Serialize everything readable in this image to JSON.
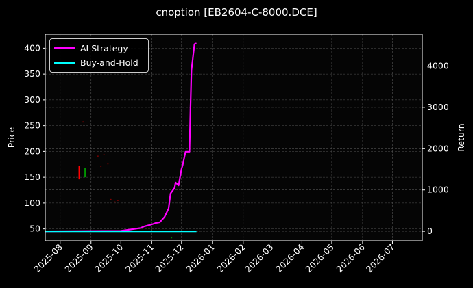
{
  "chart_data": {
    "type": "line",
    "title": "cnoption [EB2604-C-8000.DCE]",
    "ylabel_left": "Price",
    "ylabel_right": "Return",
    "left_ticks": [
      50,
      100,
      150,
      200,
      250,
      300,
      350,
      400
    ],
    "right_ticks": [
      0,
      1000,
      2000,
      3000,
      4000
    ],
    "x_ticks": [
      "2025-08",
      "2025-09",
      "2025-10",
      "2025-11",
      "2025-12",
      "2026-01",
      "2026-02",
      "2026-03",
      "2026-04",
      "2026-05",
      "2026-06",
      "2026-07"
    ],
    "xlim": [
      "2025-07-17",
      "2026-07-31"
    ],
    "ylim_left": [
      27,
      427
    ],
    "ylim_right": [
      -230,
      4770
    ],
    "grid": true,
    "legend_position": "top-left",
    "series": [
      {
        "name": "AI Strategy",
        "axis": "right",
        "color": "#ff00ff",
        "points": [
          [
            "2025-07-17",
            0
          ],
          [
            "2025-10-01",
            10
          ],
          [
            "2025-10-21",
            80
          ],
          [
            "2025-10-24",
            115
          ],
          [
            "2025-11-01",
            165
          ],
          [
            "2025-11-05",
            200
          ],
          [
            "2025-11-09",
            215
          ],
          [
            "2025-11-14",
            350
          ],
          [
            "2025-11-18",
            550
          ],
          [
            "2025-11-20",
            915
          ],
          [
            "2025-11-24",
            1050
          ],
          [
            "2025-11-25",
            1180
          ],
          [
            "2025-11-28",
            1110
          ],
          [
            "2025-12-01",
            1510
          ],
          [
            "2025-12-02",
            1590
          ],
          [
            "2025-12-05",
            1925
          ],
          [
            "2025-12-09",
            1925
          ],
          [
            "2025-12-10",
            3000
          ],
          [
            "2025-12-11",
            3900
          ],
          [
            "2025-12-14",
            4530
          ],
          [
            "2025-12-16",
            4550
          ]
        ]
      },
      {
        "name": "Buy-and-Hold",
        "axis": "right",
        "color": "#00ffff",
        "points": [
          [
            "2025-07-17",
            0
          ],
          [
            "2025-12-16",
            0
          ]
        ]
      }
    ],
    "price_marks": [
      {
        "date": "2025-08-20",
        "low": 146,
        "high": 172,
        "color": "#ff0000"
      },
      {
        "date": "2025-08-26",
        "low": 150,
        "high": 168,
        "color": "#00b000"
      },
      {
        "date": "2025-08-24",
        "low": 256,
        "high": 258,
        "color": "#aa0000"
      },
      {
        "date": "2025-09-08",
        "low": 190,
        "high": 192,
        "color": "#880000"
      },
      {
        "date": "2025-09-14",
        "low": 193,
        "high": 195,
        "color": "#880000"
      },
      {
        "date": "2025-09-18",
        "low": 175,
        "high": 177,
        "color": "#880000"
      },
      {
        "date": "2025-09-11",
        "low": 170,
        "high": 172,
        "color": "#880000"
      },
      {
        "date": "2025-09-21",
        "low": 106,
        "high": 108,
        "color": "#880000"
      },
      {
        "date": "2025-09-25",
        "low": 101,
        "high": 103,
        "color": "#880000"
      },
      {
        "date": "2025-09-28",
        "low": 104,
        "high": 106,
        "color": "#880000"
      },
      {
        "date": "2025-11-21",
        "low": 32,
        "high": 34,
        "color": "#008800"
      }
    ]
  }
}
